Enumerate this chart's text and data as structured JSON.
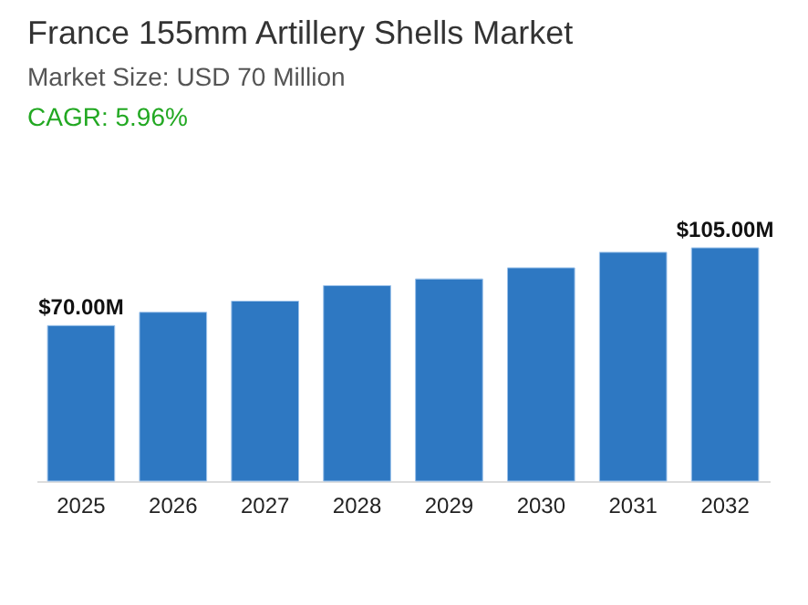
{
  "chart_data": {
    "type": "bar",
    "title": "France 155mm Artillery Shells Market",
    "subtitle": "Market Size: USD 70 Million",
    "annotations": [
      "CAGR: 5.96%"
    ],
    "categories": [
      "2025",
      "2026",
      "2027",
      "2028",
      "2029",
      "2030",
      "2031",
      "2032"
    ],
    "values": [
      70,
      76,
      81,
      88,
      91,
      96,
      103,
      105
    ],
    "value_labels": [
      "$70.00M",
      null,
      null,
      null,
      null,
      null,
      null,
      "$105.00M"
    ],
    "color": "#2e78c2",
    "grid": false
  }
}
